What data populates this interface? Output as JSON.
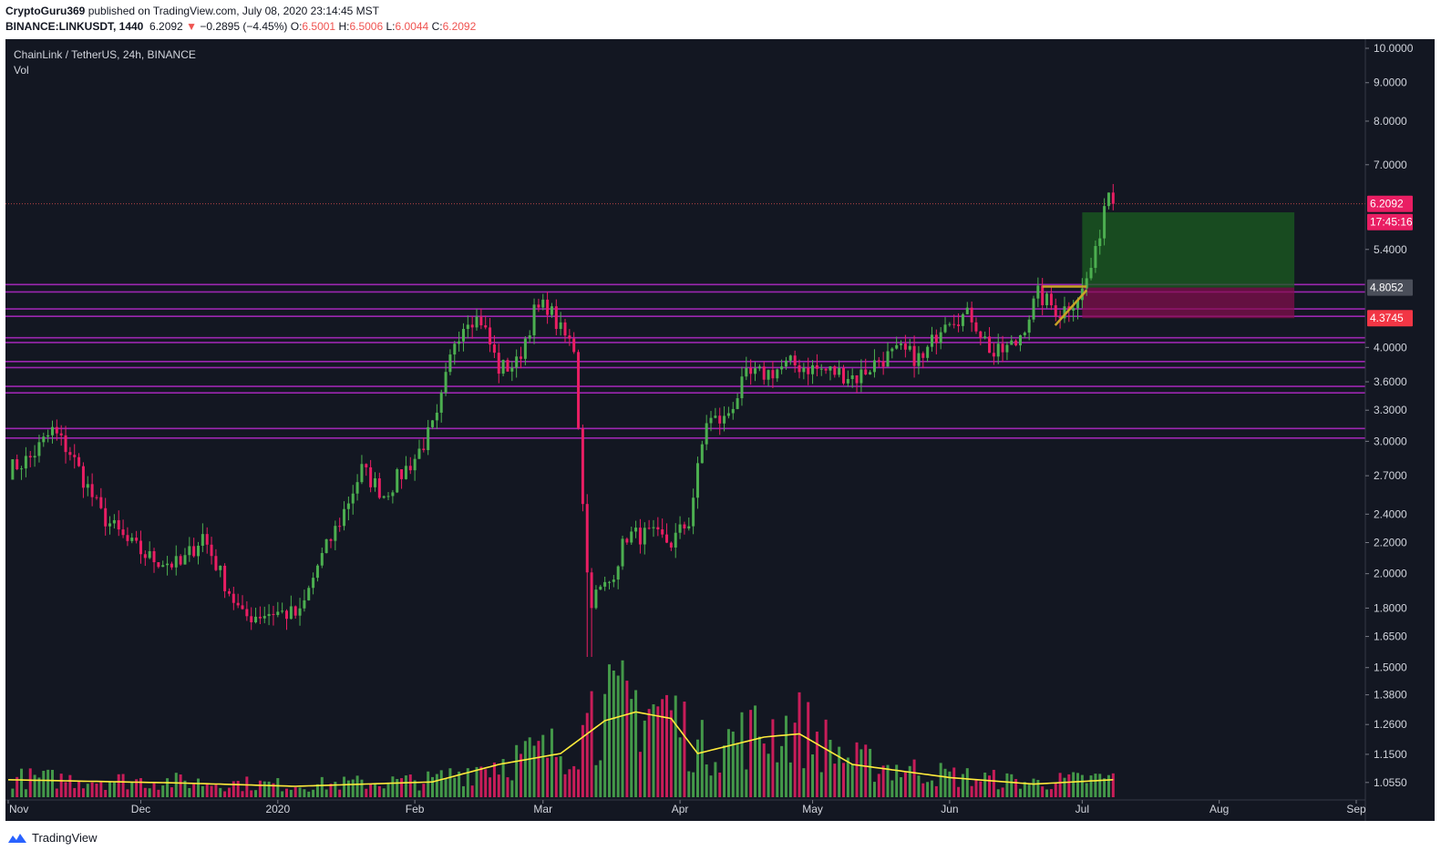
{
  "header": {
    "author": "CryptoGuru369",
    "published_text": " published on TradingView.com, July 08, 2020 23:14:45 MST",
    "symbol": "BINANCE:LINKUSDT, 1440",
    "last": "6.2092",
    "arrow": "▼",
    "change": "−0.2895 (−4.45%)",
    "o_label": "O:",
    "o_value": "6.5001",
    "h_label": "H:",
    "h_value": "6.5006",
    "l_label": "L:",
    "l_value": "6.0044",
    "c_label": "C:",
    "c_value": "6.2092"
  },
  "legend": {
    "title": "ChainLink / TetherUS, 24h, BINANCE",
    "vol": "Vol"
  },
  "footer": {
    "brand": "TradingView"
  },
  "colors": {
    "background": "#131722",
    "up": "#4caf50",
    "down": "#e91e63",
    "level_line": "#9c27b0",
    "ma": "#ffeb3b",
    "triangle": "#c9a227",
    "profit_zone": "#1b5e20",
    "loss_zone": "#880e4f"
  },
  "chart_data": {
    "type": "candlestick",
    "scale": "log",
    "x_axis": {
      "labels": [
        "Nov",
        "Dec",
        "2020",
        "Feb",
        "Mar",
        "Apr",
        "May",
        "Jun",
        "Jul",
        "Aug",
        "Sep"
      ]
    },
    "y_axis": {
      "ticks": [
        "10.0000",
        "9.0000",
        "8.0000",
        "7.0000",
        "5.4000",
        "4.0000",
        "3.6000",
        "3.3000",
        "3.0000",
        "2.7000",
        "2.4000",
        "2.2000",
        "2.0000",
        "1.8000",
        "1.6500",
        "1.5000",
        "1.3800",
        "1.2600",
        "1.1500",
        "1.0550"
      ],
      "range": [
        1.0,
        10.0
      ]
    },
    "price_labels": [
      {
        "value": "6.2092",
        "kind": "last"
      },
      {
        "value": "17:45:16",
        "kind": "countdown"
      },
      {
        "value": "4.8052",
        "kind": "entry"
      },
      {
        "value": "4.3745",
        "kind": "stop"
      }
    ],
    "horizontal_levels": [
      4.85,
      4.74,
      4.5,
      4.4,
      4.12,
      4.06,
      3.83,
      3.76,
      3.55,
      3.48,
      3.12,
      3.03
    ],
    "position": {
      "entry": 4.8052,
      "stop": 4.3745,
      "target": 6.05,
      "start_date": "2020-07-01",
      "end_date": "2020-08-18"
    },
    "triangle": {
      "top": 4.82,
      "start_date": "2020-06-22",
      "end_date": "2020-07-02",
      "bottom": 4.28
    },
    "anchors": [
      {
        "date": "2019-11-01",
        "close": 2.75
      },
      {
        "date": "2019-11-06",
        "close": 2.85
      },
      {
        "date": "2019-11-11",
        "close": 3.1
      },
      {
        "date": "2019-11-15",
        "close": 2.9
      },
      {
        "date": "2019-11-22",
        "close": 2.4
      },
      {
        "date": "2019-11-28",
        "close": 2.2
      },
      {
        "date": "2019-12-03",
        "close": 2.1
      },
      {
        "date": "2019-12-10",
        "close": 2.05
      },
      {
        "date": "2019-12-15",
        "close": 2.25
      },
      {
        "date": "2019-12-19",
        "close": 2.0
      },
      {
        "date": "2019-12-24",
        "close": 1.75
      },
      {
        "date": "2019-12-31",
        "close": 1.78
      },
      {
        "date": "2020-01-06",
        "close": 1.76
      },
      {
        "date": "2020-01-10",
        "close": 2.05
      },
      {
        "date": "2020-01-15",
        "close": 2.35
      },
      {
        "date": "2020-01-20",
        "close": 2.75
      },
      {
        "date": "2020-01-25",
        "close": 2.55
      },
      {
        "date": "2020-02-01",
        "close": 2.85
      },
      {
        "date": "2020-02-06",
        "close": 3.2
      },
      {
        "date": "2020-02-10",
        "close": 4.1
      },
      {
        "date": "2020-02-13",
        "close": 4.4
      },
      {
        "date": "2020-02-16",
        "close": 4.35
      },
      {
        "date": "2020-02-20",
        "close": 3.75
      },
      {
        "date": "2020-02-24",
        "close": 3.8
      },
      {
        "date": "2020-02-28",
        "close": 4.45
      },
      {
        "date": "2020-03-02",
        "close": 4.55
      },
      {
        "date": "2020-03-05",
        "close": 4.2
      },
      {
        "date": "2020-03-08",
        "close": 4.0
      },
      {
        "date": "2020-03-11",
        "close": 2.0
      },
      {
        "date": "2020-03-12",
        "close": 1.85
      },
      {
        "date": "2020-03-16",
        "close": 1.95
      },
      {
        "date": "2020-03-20",
        "close": 2.25
      },
      {
        "date": "2020-03-25",
        "close": 2.25
      },
      {
        "date": "2020-03-30",
        "close": 2.2
      },
      {
        "date": "2020-04-03",
        "close": 2.35
      },
      {
        "date": "2020-04-07",
        "close": 3.2
      },
      {
        "date": "2020-04-11",
        "close": 3.2
      },
      {
        "date": "2020-04-16",
        "close": 3.65
      },
      {
        "date": "2020-04-21",
        "close": 3.7
      },
      {
        "date": "2020-04-26",
        "close": 3.8
      },
      {
        "date": "2020-05-01",
        "close": 3.75
      },
      {
        "date": "2020-05-07",
        "close": 3.7
      },
      {
        "date": "2020-05-11",
        "close": 3.65
      },
      {
        "date": "2020-05-16",
        "close": 3.85
      },
      {
        "date": "2020-05-21",
        "close": 3.95
      },
      {
        "date": "2020-05-26",
        "close": 3.85
      },
      {
        "date": "2020-05-31",
        "close": 4.4
      },
      {
        "date": "2020-06-06",
        "close": 4.4
      },
      {
        "date": "2020-06-11",
        "close": 3.9
      },
      {
        "date": "2020-06-16",
        "close": 4.05
      },
      {
        "date": "2020-06-21",
        "close": 4.7
      },
      {
        "date": "2020-06-26",
        "close": 4.45
      },
      {
        "date": "2020-07-01",
        "close": 4.75
      },
      {
        "date": "2020-07-04",
        "close": 5.3
      },
      {
        "date": "2020-07-06",
        "close": 6.2
      },
      {
        "date": "2020-07-07",
        "close": 6.5
      },
      {
        "date": "2020-07-08",
        "close": 6.2092
      }
    ],
    "volume": {
      "ma_profile": [
        {
          "date": "2019-11-01",
          "value": 0.16
        },
        {
          "date": "2019-12-10",
          "value": 0.13
        },
        {
          "date": "2020-01-05",
          "value": 0.1
        },
        {
          "date": "2020-02-05",
          "value": 0.14
        },
        {
          "date": "2020-02-20",
          "value": 0.3
        },
        {
          "date": "2020-03-05",
          "value": 0.4
        },
        {
          "date": "2020-03-15",
          "value": 0.7
        },
        {
          "date": "2020-03-22",
          "value": 0.78
        },
        {
          "date": "2020-03-30",
          "value": 0.72
        },
        {
          "date": "2020-04-05",
          "value": 0.4
        },
        {
          "date": "2020-04-20",
          "value": 0.55
        },
        {
          "date": "2020-04-28",
          "value": 0.58
        },
        {
          "date": "2020-05-10",
          "value": 0.3
        },
        {
          "date": "2020-06-01",
          "value": 0.18
        },
        {
          "date": "2020-06-20",
          "value": 0.12
        },
        {
          "date": "2020-07-08",
          "value": 0.16
        }
      ],
      "spike_date": "2020-03-12"
    }
  }
}
